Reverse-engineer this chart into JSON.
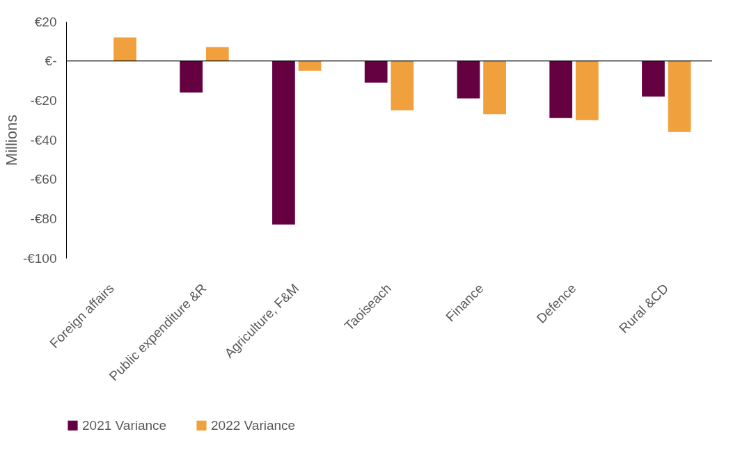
{
  "chart_data": {
    "type": "bar",
    "ylabel": "Millions",
    "categories": [
      "Foreign affairs",
      "Public expenditure &R",
      "Agriculture, F&M",
      "Taoiseach",
      "Finance",
      "Defence",
      "Rural &CD"
    ],
    "series": [
      {
        "name": "2021 Variance",
        "color": "#650041",
        "values": [
          null,
          -16,
          -83,
          -11,
          -19,
          -29,
          -18
        ]
      },
      {
        "name": "2022 Variance",
        "color": "#f0a03c",
        "values": [
          12,
          7,
          -5,
          -25,
          -27,
          -30,
          -36
        ]
      }
    ],
    "ylim": [
      -100,
      20
    ],
    "yticks": [
      {
        "value": -100,
        "label": "-€100"
      },
      {
        "value": -80,
        "label": "-€80"
      },
      {
        "value": -60,
        "label": "-€60"
      },
      {
        "value": -40,
        "label": "-€40"
      },
      {
        "value": -20,
        "label": "-€20"
      },
      {
        "value": 0,
        "label": "€-"
      },
      {
        "value": 20,
        "label": "€20"
      }
    ],
    "legend": "bottom"
  }
}
